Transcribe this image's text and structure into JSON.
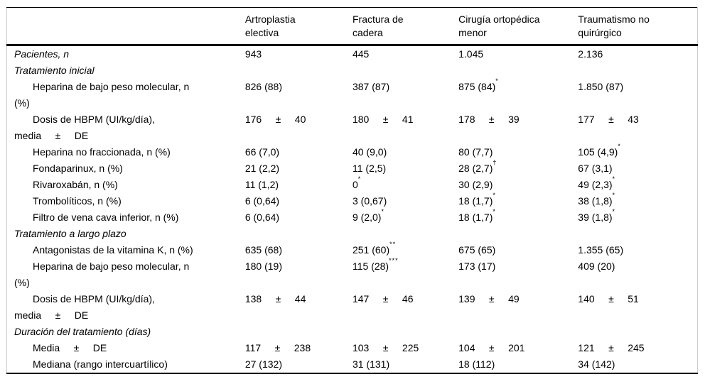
{
  "table": {
    "columns": [
      "Artroplastia\nelectiva",
      "Fractura de\ncadera",
      "Cirugía ortopédica\nmenor",
      "Traumatismo no\nquirúrgico"
    ],
    "rows": [
      {
        "label": "Pacientes, n",
        "style": "section",
        "cells": [
          {
            "text": "943"
          },
          {
            "text": "445"
          },
          {
            "text": "1.045"
          },
          {
            "text": "2.136"
          }
        ]
      },
      {
        "label": "Tratamiento inicial",
        "style": "section",
        "cells": [
          {
            "text": ""
          },
          {
            "text": ""
          },
          {
            "text": ""
          },
          {
            "text": ""
          }
        ]
      },
      {
        "label": "Heparina de bajo peso molecular, n\n(%)",
        "style": "indent",
        "cells": [
          {
            "text": "826 (88)"
          },
          {
            "text": "387 (87)"
          },
          {
            "text": "875 (84)",
            "sup": "*"
          },
          {
            "text": "1.850 (87)"
          }
        ]
      },
      {
        "label": "Dosis de HBPM (UI/kg/día),\nmedia     ±     DE",
        "style": "indent",
        "cells": [
          {
            "text": "176     ±     40"
          },
          {
            "text": "180     ±     41"
          },
          {
            "text": "178     ±     39"
          },
          {
            "text": "177     ±     43"
          }
        ]
      },
      {
        "label": "Heparina no fraccionada, n (%)",
        "style": "indent",
        "cells": [
          {
            "text": "66 (7,0)"
          },
          {
            "text": "40 (9,0)"
          },
          {
            "text": "80 (7,7)"
          },
          {
            "text": "105 (4,9)",
            "sup": "*"
          }
        ]
      },
      {
        "label": "Fondaparinux, n (%)",
        "style": "indent",
        "cells": [
          {
            "text": "21 (2,2)"
          },
          {
            "text": "11 (2,5)"
          },
          {
            "text": "28 (2,7)",
            "sup": "†"
          },
          {
            "text": "67 (3,1)"
          }
        ]
      },
      {
        "label": "Rivaroxabán, n (%)",
        "style": "indent",
        "cells": [
          {
            "text": "11 (1,2)"
          },
          {
            "text": "0",
            "sup": "*"
          },
          {
            "text": "30 (2,9)"
          },
          {
            "text": "49 (2,3)",
            "sup": "*"
          }
        ]
      },
      {
        "label": "Trombolíticos, n (%)",
        "style": "indent",
        "cells": [
          {
            "text": "6 (0,64)"
          },
          {
            "text": "3 (0,67)"
          },
          {
            "text": "18 (1,7)",
            "sup": "*"
          },
          {
            "text": "38 (1,8)",
            "sup": "*"
          }
        ]
      },
      {
        "label": "Filtro de vena cava inferior, n (%)",
        "style": "indent",
        "cells": [
          {
            "text": "6 (0,64)"
          },
          {
            "text": "9 (2,0)",
            "sup": "*"
          },
          {
            "text": "18 (1,7)",
            "sup": "*"
          },
          {
            "text": "39 (1,8)",
            "sup": "*"
          }
        ]
      },
      {
        "label": "Tratamiento a largo plazo",
        "style": "section",
        "cells": [
          {
            "text": ""
          },
          {
            "text": ""
          },
          {
            "text": ""
          },
          {
            "text": ""
          }
        ]
      },
      {
        "label": "Antagonistas de la vitamina K, n (%)",
        "style": "indent",
        "cells": [
          {
            "text": "635 (68)"
          },
          {
            "text": "251 (60)",
            "sup": "**"
          },
          {
            "text": "675 (65)"
          },
          {
            "text": "1.355 (65)"
          }
        ]
      },
      {
        "label": "Heparina de bajo peso molecular, n\n(%)",
        "style": "indent",
        "cells": [
          {
            "text": "180 (19)"
          },
          {
            "text": "115 (28)",
            "sup": "***"
          },
          {
            "text": "173 (17)"
          },
          {
            "text": "409 (20)"
          }
        ]
      },
      {
        "label": "Dosis de HBPM (UI/kg/día),\nmedia     ±     DE",
        "style": "indent",
        "cells": [
          {
            "text": "138     ±     44"
          },
          {
            "text": "147     ±     46"
          },
          {
            "text": "139     ±     49"
          },
          {
            "text": "140     ±     51"
          }
        ]
      },
      {
        "label": "Duración del tratamiento (días)",
        "style": "section",
        "cells": [
          {
            "text": ""
          },
          {
            "text": ""
          },
          {
            "text": ""
          },
          {
            "text": ""
          }
        ]
      },
      {
        "label": "Media     ±     DE",
        "style": "indent",
        "cells": [
          {
            "text": "117     ±     238"
          },
          {
            "text": "103     ±     225"
          },
          {
            "text": "104     ±     201"
          },
          {
            "text": "121     ±     245"
          }
        ]
      },
      {
        "label": "Mediana (rango intercuartílico)",
        "style": "indent",
        "cells": [
          {
            "text": "27 (132)"
          },
          {
            "text": "31 (131)"
          },
          {
            "text": "18 (112)"
          },
          {
            "text": "34 (142)"
          }
        ]
      }
    ]
  }
}
